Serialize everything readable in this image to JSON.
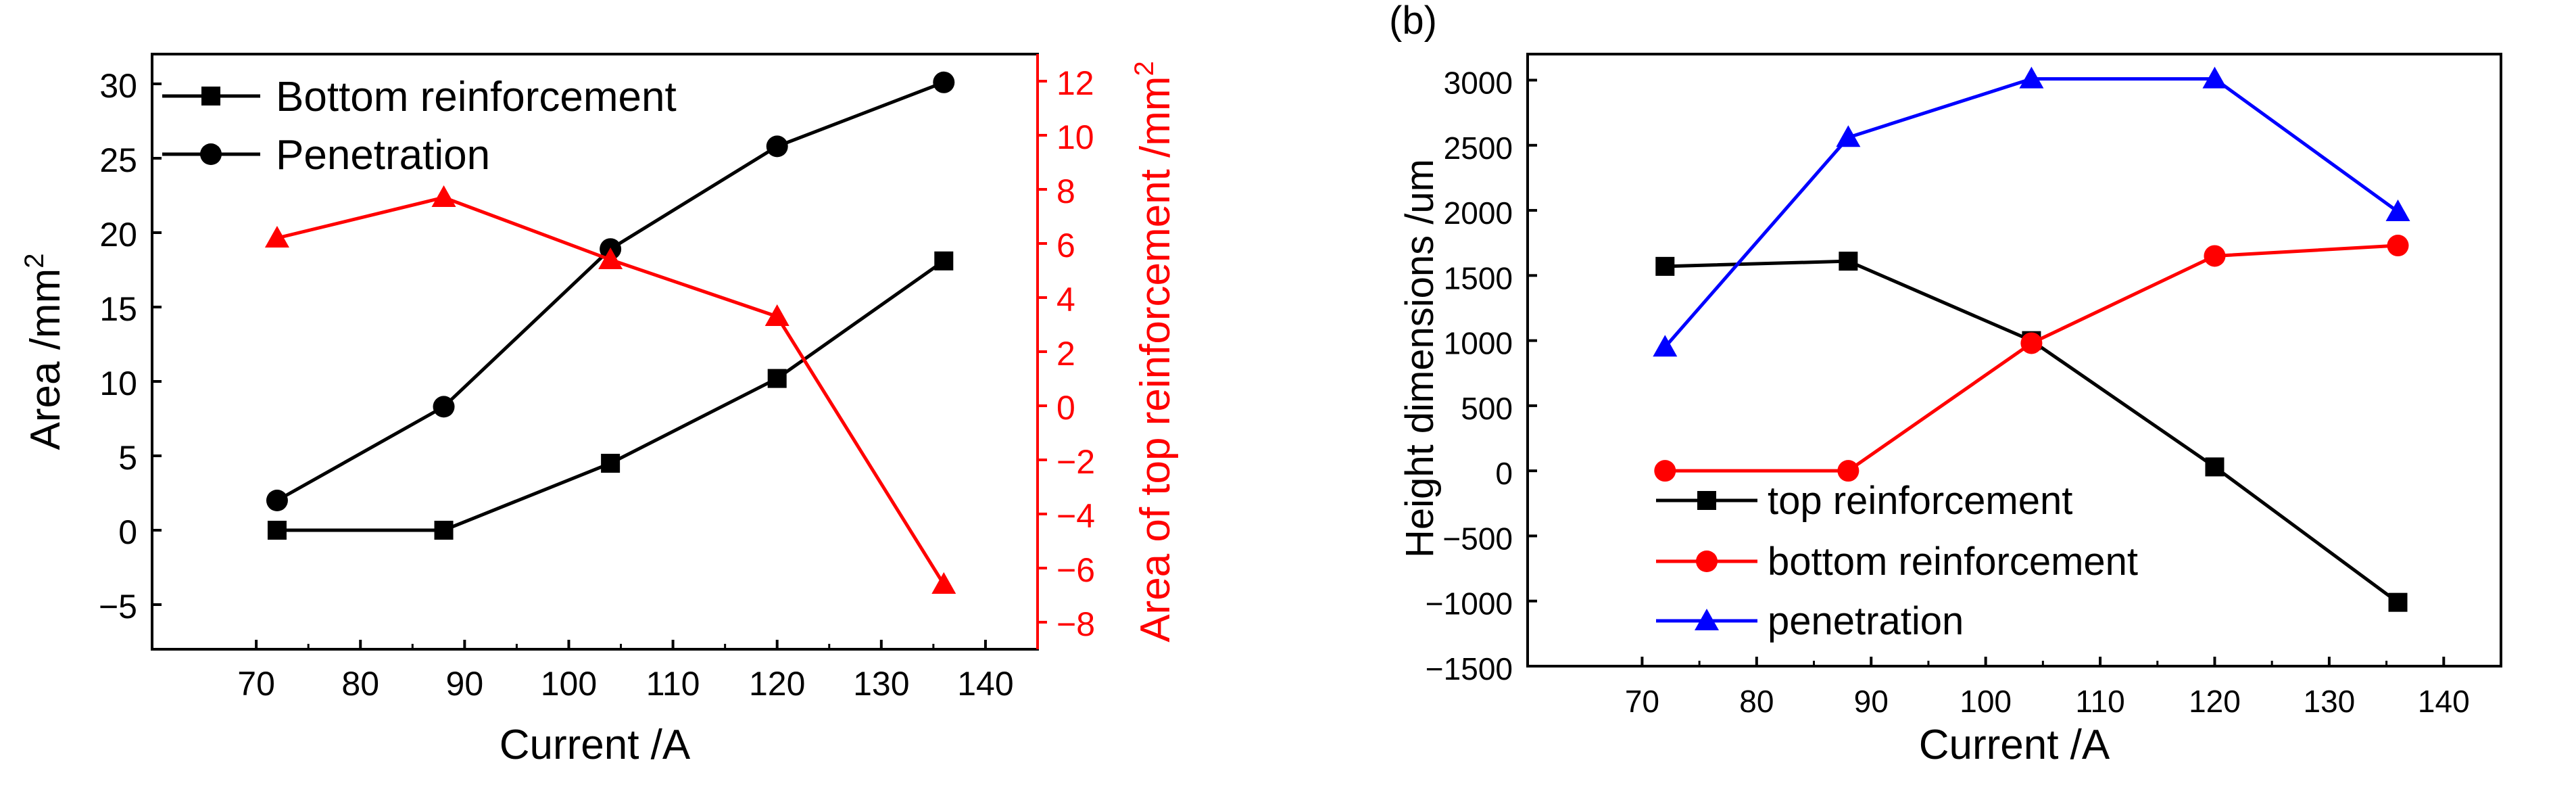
{
  "chart_data": [
    {
      "type": "line",
      "panel_label": "",
      "xlabel": "Current /A",
      "ylabel": "Area /mm",
      "ylabel_sup": "2",
      "y2label": "Area of top reinforcement /mm",
      "y2label_sup": "2",
      "xlim": [
        60,
        145
      ],
      "ylim": [
        -8,
        32
      ],
      "y2lim": [
        -9,
        13
      ],
      "xticks": [
        70,
        80,
        90,
        100,
        110,
        120,
        130,
        140
      ],
      "yticks": [
        -5,
        0,
        5,
        10,
        15,
        20,
        25,
        30
      ],
      "y2ticks": [
        -8,
        -6,
        -4,
        -2,
        0,
        2,
        4,
        6,
        8,
        10,
        12
      ],
      "x": [
        72,
        88,
        104,
        120,
        136
      ],
      "series": [
        {
          "name": "Bottom reinforcement",
          "axis": "left",
          "marker": "square",
          "color": "#000000",
          "values": [
            0,
            0,
            4.5,
            10.2,
            18.1
          ]
        },
        {
          "name": "Penetration",
          "axis": "left",
          "marker": "circle",
          "color": "#000000",
          "values": [
            2.0,
            8.3,
            18.9,
            25.8,
            30.1
          ]
        },
        {
          "name": "Area of top reinforcement",
          "axis": "right",
          "marker": "triangle",
          "color": "#ff0000",
          "values": [
            6.2,
            7.7,
            5.4,
            3.3,
            -6.6
          ]
        }
      ],
      "legend": {
        "position": "top-left",
        "items": [
          "Bottom reinforcement",
          "Penetration"
        ]
      },
      "right_axis_color": "#ff0000"
    },
    {
      "type": "line",
      "panel_label": "(b)",
      "xlabel": "Current /A",
      "ylabel": "Height dimensions /um",
      "xlim": [
        60,
        145
      ],
      "ylim": [
        -1500,
        3200
      ],
      "xticks": [
        70,
        80,
        90,
        100,
        110,
        120,
        130,
        140
      ],
      "yticks": [
        -1500,
        -1000,
        -500,
        0,
        500,
        1000,
        1500,
        2000,
        2500,
        3000
      ],
      "x": [
        72,
        88,
        104,
        120,
        136
      ],
      "series": [
        {
          "name": "top reinforcement",
          "marker": "square",
          "color": "#000000",
          "values": [
            1570,
            1610,
            1000,
            30,
            -1010
          ]
        },
        {
          "name": "bottom reinforcement",
          "marker": "circle",
          "color": "#ff0000",
          "values": [
            0,
            0,
            980,
            1650,
            1730
          ]
        },
        {
          "name": "penetration",
          "marker": "triangle",
          "color": "#0000ff",
          "values": [
            950,
            2560,
            3010,
            3010,
            1990
          ]
        }
      ],
      "legend": {
        "position": "bottom-left",
        "items": [
          "top reinforcement",
          "bottom reinforcement",
          "penetration"
        ]
      }
    }
  ]
}
